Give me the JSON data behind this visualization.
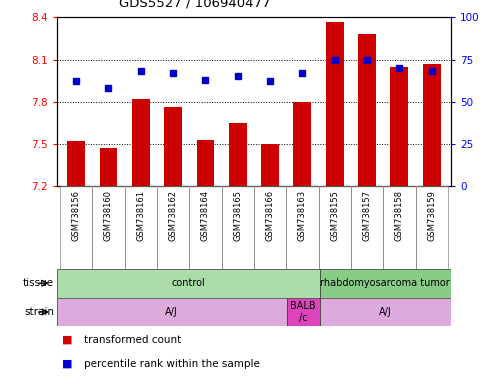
{
  "title": "GDS5527 / 106940477",
  "samples": [
    "GSM738156",
    "GSM738160",
    "GSM738161",
    "GSM738162",
    "GSM738164",
    "GSM738165",
    "GSM738166",
    "GSM738163",
    "GSM738155",
    "GSM738157",
    "GSM738158",
    "GSM738159"
  ],
  "red_values": [
    7.52,
    7.47,
    7.82,
    7.76,
    7.53,
    7.65,
    7.5,
    7.8,
    8.37,
    8.28,
    8.05,
    8.07
  ],
  "blue_values": [
    62,
    58,
    68,
    67,
    63,
    65,
    62,
    67,
    75,
    75,
    70,
    68
  ],
  "ylim_left": [
    7.2,
    8.4
  ],
  "ylim_right": [
    0,
    100
  ],
  "yticks_left": [
    7.2,
    7.5,
    7.8,
    8.1,
    8.4
  ],
  "yticks_right": [
    0,
    25,
    50,
    75,
    100
  ],
  "hline_values": [
    7.5,
    7.8,
    8.1
  ],
  "bar_color": "#CC0000",
  "dot_color": "#0000CC",
  "bar_bottom": 7.2,
  "legend_red": "transformed count",
  "legend_blue": "percentile rank within the sample",
  "tissue_groups": [
    {
      "label": "control",
      "start": 0,
      "end": 8,
      "color": "#aaddaa"
    },
    {
      "label": "rhabdomyosarcoma tumor",
      "start": 8,
      "end": 12,
      "color": "#88cc88"
    }
  ],
  "strain_groups": [
    {
      "label": "A/J",
      "start": 0,
      "end": 7,
      "color": "#ddaadd"
    },
    {
      "label": "BALB\n/c",
      "start": 7,
      "end": 8,
      "color": "#dd44bb"
    },
    {
      "label": "A/J",
      "start": 8,
      "end": 12,
      "color": "#ddaadd"
    }
  ],
  "sample_label_bg": "#c8c8c8",
  "tissue_control_color": "#aaddaa",
  "tissue_tumor_color": "#88cc88",
  "strain_aj_color": "#ddaadd",
  "strain_balb_color": "#dd44bb"
}
